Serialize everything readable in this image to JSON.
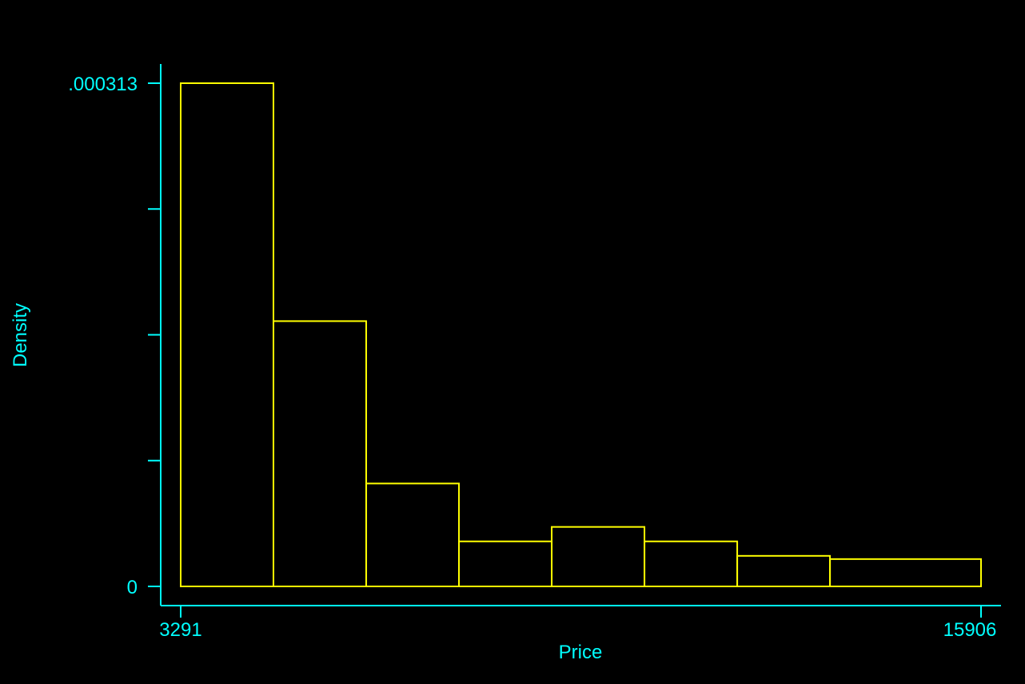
{
  "chart_data": {
    "type": "bar",
    "title": "",
    "xlabel": "Price",
    "ylabel": "Density",
    "x_ticks": [
      "3291",
      "15906"
    ],
    "y_ticks": [
      ".000313",
      "0"
    ],
    "xlim": [
      3291,
      15906
    ],
    "ylim": [
      0,
      0.000313
    ],
    "bins": [
      {
        "start": 3291,
        "end": 4753,
        "density": 0.000313
      },
      {
        "start": 4753,
        "end": 6215,
        "density": 0.000165
      },
      {
        "start": 6215,
        "end": 7677,
        "density": 6.4e-05
      },
      {
        "start": 7677,
        "end": 9139,
        "density": 2.8e-05
      },
      {
        "start": 9139,
        "end": 10601,
        "density": 3.7e-05
      },
      {
        "start": 10601,
        "end": 12063,
        "density": 2.8e-05
      },
      {
        "start": 12063,
        "end": 13525,
        "density": 1.9e-05
      },
      {
        "start": 13525,
        "end": 15906,
        "density": 1.7e-05
      }
    ],
    "grid": false,
    "colors": {
      "background": "#000000",
      "axis": "#00ffff",
      "bars": "#ffff00"
    }
  }
}
